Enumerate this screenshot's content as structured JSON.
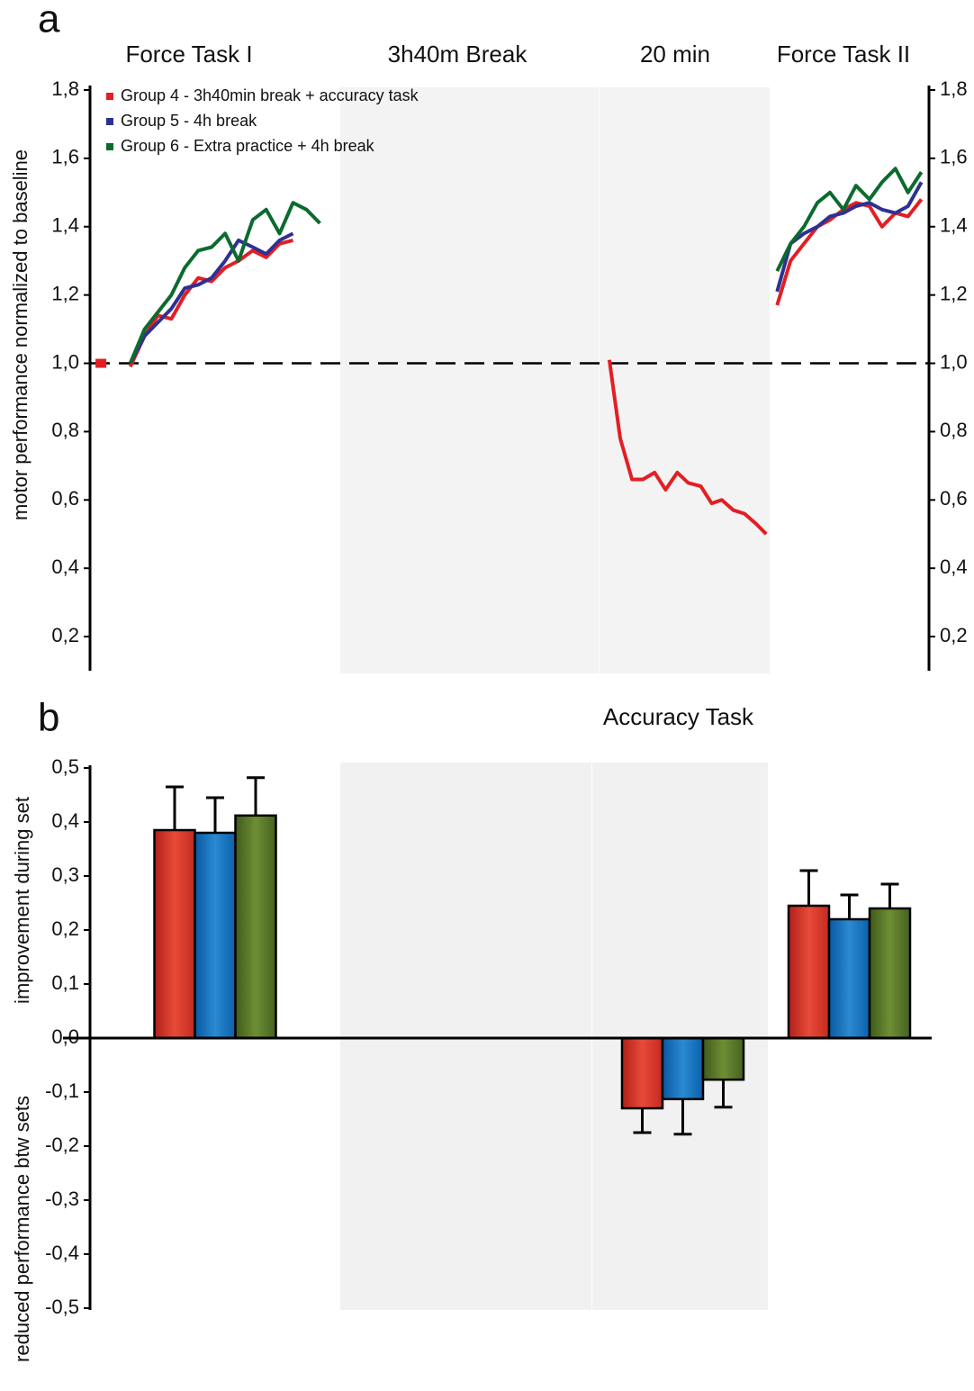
{
  "chart_data": [
    {
      "type": "line",
      "label": "a",
      "sections": [
        "Force Task I",
        "3h40m Break",
        "20 min",
        "Force Task II"
      ],
      "ylabel": "motor performance normalized to baseline",
      "xlim": [
        0,
        100
      ],
      "x": [
        1.3,
        3,
        4.8,
        6.5,
        8.1,
        9.7,
        11.3,
        12.9,
        14.5,
        16.1,
        17.7,
        19.4,
        21.0,
        22.6,
        24.2,
        25.8,
        27.4,
        44,
        61.9,
        63.2,
        64.6,
        65.9,
        67.3,
        68.6,
        70.0,
        71.3,
        72.8,
        74.1,
        75.3,
        76.7,
        78.0,
        79.4,
        80.6,
        81.5,
        81.9,
        83.5,
        85.1,
        86.7,
        88.2,
        89.8,
        91.3,
        92.9,
        94.4,
        96.0,
        97.5,
        99.1
      ],
      "ylim": [
        0.1,
        1.8
      ],
      "yticks": [
        {
          "value": 0.2,
          "label": "0,2"
        },
        {
          "value": 0.4,
          "label": "0,4"
        },
        {
          "value": 0.6,
          "label": "0,6"
        },
        {
          "value": 0.8,
          "label": "0,8"
        },
        {
          "value": 1.0,
          "label": "1,0"
        },
        {
          "value": 1.2,
          "label": "1,2"
        },
        {
          "value": 1.4,
          "label": "1,4"
        },
        {
          "value": 1.6,
          "label": "1,6"
        },
        {
          "value": 1.8,
          "label": "1,8"
        }
      ],
      "y2lim": [
        0.1,
        1.8
      ],
      "y2ticks": [
        {
          "value": 0.2,
          "label": "0,2"
        },
        {
          "value": 0.4,
          "label": "0,4"
        },
        {
          "value": 0.6,
          "label": "0,6"
        },
        {
          "value": 0.8,
          "label": "0,8"
        },
        {
          "value": 1.0,
          "label": "1,0"
        },
        {
          "value": 1.2,
          "label": "1,2"
        },
        {
          "value": 1.4,
          "label": "1,4"
        },
        {
          "value": 1.6,
          "label": "1,6"
        },
        {
          "value": 1.8,
          "label": "1,8"
        }
      ],
      "hline": 1.0,
      "legend": "top-left",
      "series": [
        {
          "name": "Group 4 - 3h40min break + accuracy task",
          "color": "#e31e24",
          "values": [
            1.0,
            null,
            0.99,
            1.08,
            1.14,
            1.13,
            1.2,
            1.25,
            1.24,
            1.28,
            1.3,
            1.33,
            1.31,
            1.35,
            1.36,
            null,
            null,
            null,
            1.01,
            0.78,
            0.66,
            0.66,
            0.68,
            0.63,
            0.68,
            0.65,
            0.64,
            0.59,
            0.6,
            0.57,
            0.56,
            0.53,
            0.5,
            null,
            1.17,
            1.3,
            1.35,
            1.4,
            1.42,
            1.45,
            1.47,
            1.46,
            1.4,
            1.44,
            1.43,
            1.48
          ]
        },
        {
          "name": "Group 5 - 4h break",
          "color": "#2e3192",
          "values": [
            null,
            null,
            1.0,
            1.08,
            1.12,
            1.16,
            1.22,
            1.23,
            1.25,
            1.3,
            1.36,
            1.34,
            1.32,
            1.36,
            1.38,
            null,
            null,
            null,
            null,
            null,
            null,
            null,
            null,
            null,
            null,
            null,
            null,
            null,
            null,
            null,
            null,
            null,
            null,
            null,
            1.21,
            1.35,
            1.38,
            1.4,
            1.43,
            1.44,
            1.46,
            1.47,
            1.45,
            1.44,
            1.46,
            1.53
          ]
        },
        {
          "name": "Group 6 - Extra practice + 4h break",
          "color": "#0b6b2e",
          "values": [
            null,
            null,
            1.0,
            1.1,
            1.15,
            1.2,
            1.28,
            1.33,
            1.34,
            1.38,
            1.3,
            1.42,
            1.45,
            1.38,
            1.47,
            1.45,
            1.41,
            null,
            null,
            null,
            null,
            null,
            null,
            null,
            null,
            null,
            null,
            null,
            null,
            null,
            null,
            null,
            null,
            null,
            1.27,
            1.35,
            1.4,
            1.47,
            1.5,
            1.45,
            1.52,
            1.48,
            1.53,
            1.57,
            1.5,
            1.56
          ]
        }
      ]
    },
    {
      "type": "bar",
      "label": "b",
      "categories": [
        null,
        null,
        "Accuracy Task",
        null
      ],
      "ylabel": [
        "improvement during set",
        "reduced performance btw sets"
      ],
      "ylim": [
        -0.5,
        0.5
      ],
      "yticks": [
        {
          "value": -0.5,
          "label": "-0,5"
        },
        {
          "value": -0.4,
          "label": "-0,4"
        },
        {
          "value": -0.3,
          "label": "-0,3"
        },
        {
          "value": -0.2,
          "label": "-0,2"
        },
        {
          "value": -0.1,
          "label": "-0,1"
        },
        {
          "value": 0,
          "label": "0,0"
        },
        {
          "value": 0.1,
          "label": "0,1"
        },
        {
          "value": 0.2,
          "label": "0,2"
        },
        {
          "value": 0.3,
          "label": "0,3"
        },
        {
          "value": 0.4,
          "label": "0,4"
        },
        {
          "value": 0.5,
          "label": "0,5"
        }
      ],
      "series": [
        {
          "color": "#e03a2a",
          "values": [
            0.385,
            null,
            -0.13,
            0.245
          ],
          "errors": [
            0.08,
            null,
            0.045,
            0.065
          ]
        },
        {
          "color": "#1a78c2",
          "values": [
            0.38,
            null,
            -0.113,
            0.22
          ],
          "errors": [
            0.065,
            null,
            0.065,
            0.045
          ]
        },
        {
          "color": "#5a7a2a",
          "values": [
            0.412,
            null,
            -0.077,
            0.24
          ],
          "errors": [
            0.07,
            null,
            0.051,
            0.045
          ]
        }
      ]
    }
  ]
}
